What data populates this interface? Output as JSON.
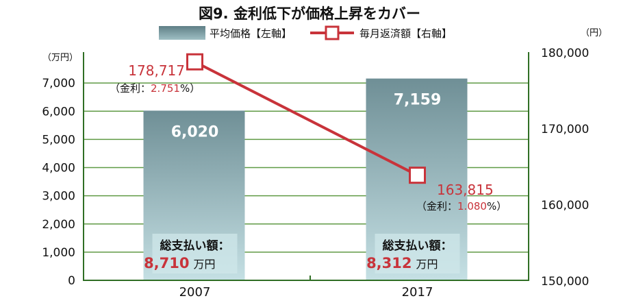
{
  "chart_data": {
    "type": "bar",
    "title": "図9. 金利低下が価格上昇をカバー",
    "categories": [
      "2007",
      "2017"
    ],
    "legend": {
      "placement": "top",
      "bar_label": "平均価格【左軸】",
      "line_label": "毎月返済額【右軸】"
    },
    "left_axis": {
      "unit": "（万円）",
      "ylim": [
        0,
        8000
      ],
      "ticks": [
        "0",
        "1,000",
        "2,000",
        "3,000",
        "4,000",
        "5,000",
        "6,000",
        "7,000"
      ]
    },
    "right_axis": {
      "unit": "（円）",
      "ylim": [
        150000,
        180000
      ],
      "ticks": [
        "150,000",
        "160,000",
        "170,000",
        "180,000"
      ]
    },
    "series": [
      {
        "name": "平均価格【左軸】",
        "axis": "left",
        "type": "bar",
        "values": [
          6020,
          7159
        ],
        "labels": [
          "6,020",
          "7,159"
        ]
      },
      {
        "name": "毎月返済額【右軸】",
        "axis": "right",
        "type": "line",
        "values": [
          178717,
          163815
        ],
        "labels": [
          "178,717",
          "163,815"
        ]
      }
    ],
    "rates": [
      {
        "prefix": "（金利：",
        "value": "2.751",
        "suffix": "%）"
      },
      {
        "prefix": "（金利：",
        "value": "1.080",
        "suffix": "%）"
      }
    ],
    "totals": [
      {
        "caption": "総支払い額：",
        "amount": "8,710",
        "unit": "万円"
      },
      {
        "caption": "総支払い額：",
        "amount": "8,312",
        "unit": "万円"
      }
    ],
    "grid": true,
    "colors": {
      "bar_top": "#6f8f96",
      "bar_bottom": "#c5e0e4",
      "line": "#c8333a",
      "grid": "#5f9a44",
      "accent_text": "#c8333a",
      "plot_bg": "#ffffff"
    }
  }
}
